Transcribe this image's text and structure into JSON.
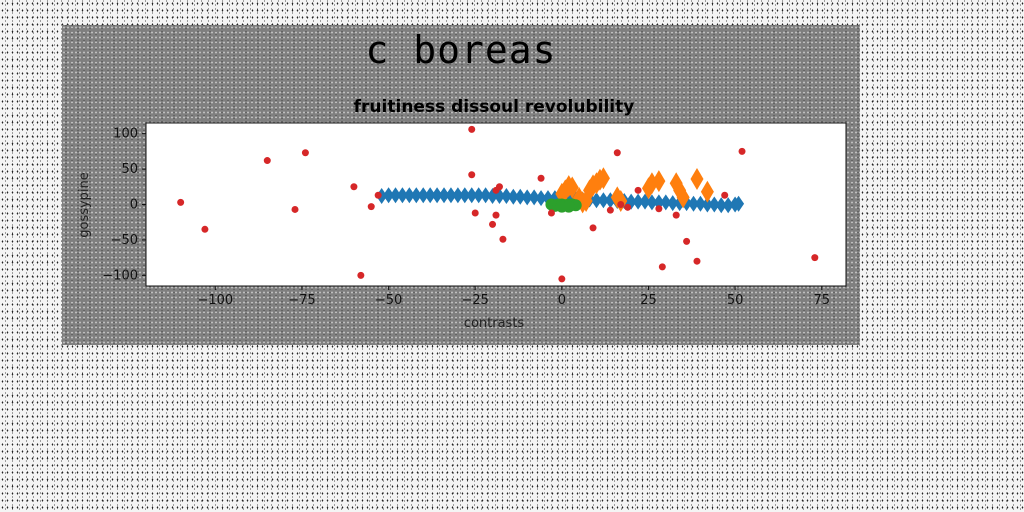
{
  "page": {
    "title": "c boreas"
  },
  "chart_data": {
    "type": "scatter",
    "title": "fruitiness dissoul revolubility",
    "xlabel": "contrasts",
    "ylabel": "gossypine",
    "xlim": [
      -120,
      82
    ],
    "ylim": [
      -115,
      115
    ],
    "xticks": [
      -100,
      -75,
      -50,
      -25,
      0,
      25,
      50,
      75
    ],
    "yticks": [
      100,
      50,
      0,
      -50,
      -100
    ],
    "grid": false,
    "legend": "none",
    "series": [
      {
        "color": "#1f77b4",
        "marker": "diamond",
        "points": [
          [
            -52,
            12
          ],
          [
            -50,
            13
          ],
          [
            -48,
            13
          ],
          [
            -46,
            13
          ],
          [
            -44,
            13
          ],
          [
            -42,
            13
          ],
          [
            -40,
            13
          ],
          [
            -38,
            13
          ],
          [
            -36,
            13
          ],
          [
            -34,
            13
          ],
          [
            -32,
            13
          ],
          [
            -30,
            13
          ],
          [
            -28,
            13
          ],
          [
            -26,
            13
          ],
          [
            -24,
            13
          ],
          [
            -22,
            13
          ],
          [
            -20,
            12
          ],
          [
            -18,
            12
          ],
          [
            -16,
            12
          ],
          [
            -14,
            11
          ],
          [
            -12,
            11
          ],
          [
            -10,
            10
          ],
          [
            -8,
            10
          ],
          [
            -6,
            9
          ],
          [
            -4,
            9
          ],
          [
            -2,
            9
          ],
          [
            0,
            8
          ],
          [
            2,
            8
          ],
          [
            4,
            8
          ],
          [
            6,
            7
          ],
          [
            8,
            7
          ],
          [
            10,
            6
          ],
          [
            12,
            6
          ],
          [
            14,
            6
          ],
          [
            16,
            5
          ],
          [
            18,
            5
          ],
          [
            20,
            4
          ],
          [
            22,
            4
          ],
          [
            24,
            4
          ],
          [
            26,
            3
          ],
          [
            28,
            3
          ],
          [
            30,
            3
          ],
          [
            32,
            2
          ],
          [
            34,
            2
          ],
          [
            36,
            2
          ],
          [
            38,
            1
          ],
          [
            40,
            1
          ],
          [
            42,
            0
          ],
          [
            44,
            0
          ],
          [
            46,
            -1
          ],
          [
            48,
            -1
          ],
          [
            50,
            0
          ],
          [
            51,
            1
          ]
        ]
      },
      {
        "color": "#ff7f0e",
        "marker": "diamond",
        "points": [
          [
            0,
            15
          ],
          [
            1,
            20
          ],
          [
            2,
            26
          ],
          [
            3,
            24
          ],
          [
            5,
            9
          ],
          [
            6,
            3
          ],
          [
            7,
            5
          ],
          [
            8,
            20
          ],
          [
            9,
            27
          ],
          [
            10,
            30
          ],
          [
            11,
            35
          ],
          [
            12,
            37
          ],
          [
            16,
            10
          ],
          [
            17,
            5
          ],
          [
            25,
            23
          ],
          [
            26,
            30
          ],
          [
            28,
            33
          ],
          [
            33,
            30
          ],
          [
            34,
            20
          ],
          [
            35,
            10
          ],
          [
            39,
            36
          ],
          [
            42,
            18
          ]
        ]
      },
      {
        "color": "#2ca02c",
        "marker": "circle",
        "points": [
          [
            -3,
            0
          ],
          [
            -2,
            -2
          ],
          [
            -1,
            0
          ],
          [
            0,
            0
          ],
          [
            1,
            -1
          ],
          [
            2,
            0
          ],
          [
            3,
            0
          ],
          [
            4,
            -1
          ],
          [
            0,
            -3
          ],
          [
            2,
            -3
          ]
        ]
      },
      {
        "color": "#d62728",
        "marker": "dot",
        "points": [
          [
            -110,
            3
          ],
          [
            -103,
            -35
          ],
          [
            -85,
            62
          ],
          [
            -77,
            -7
          ],
          [
            -74,
            73
          ],
          [
            -60,
            25
          ],
          [
            -58,
            -100
          ],
          [
            -55,
            -3
          ],
          [
            -53,
            13
          ],
          [
            -26,
            106
          ],
          [
            -26,
            42
          ],
          [
            -25,
            -12
          ],
          [
            -20,
            -28
          ],
          [
            -19,
            -15
          ],
          [
            -19,
            20
          ],
          [
            -18,
            25
          ],
          [
            -17,
            -49
          ],
          [
            -6,
            37
          ],
          [
            -3,
            -12
          ],
          [
            0,
            -105
          ],
          [
            9,
            -33
          ],
          [
            14,
            -8
          ],
          [
            16,
            73
          ],
          [
            17,
            0
          ],
          [
            19,
            -4
          ],
          [
            22,
            20
          ],
          [
            28,
            -6
          ],
          [
            29,
            -88
          ],
          [
            33,
            -15
          ],
          [
            36,
            -52
          ],
          [
            39,
            -80
          ],
          [
            47,
            13
          ],
          [
            52,
            75
          ],
          [
            73,
            -75
          ]
        ]
      }
    ]
  }
}
